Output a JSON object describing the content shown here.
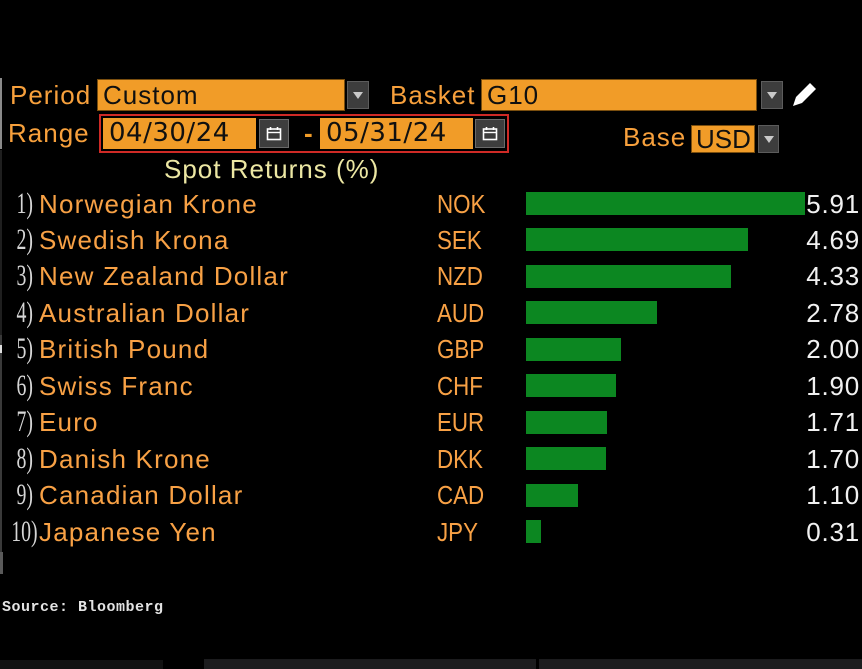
{
  "controls": {
    "period": {
      "label": "Period",
      "value": "Custom"
    },
    "basket": {
      "label": "Basket",
      "value": "G10"
    },
    "range": {
      "label": "Range",
      "start": "04/30/24",
      "separator": "-",
      "end": "05/31/24"
    },
    "base": {
      "label": "Base",
      "value": "USD"
    }
  },
  "chart_data": {
    "type": "bar",
    "orientation": "horizontal",
    "title": "Spot Returns (%)",
    "categories": [
      "Norwegian Krone",
      "Swedish Krona",
      "New Zealand Dollar",
      "Australian Dollar",
      "British Pound",
      "Swiss Franc",
      "Euro",
      "Danish Krone",
      "Canadian Dollar",
      "Japanese Yen"
    ],
    "tickers": [
      "NOK",
      "SEK",
      "NZD",
      "AUD",
      "GBP",
      "CHF",
      "EUR",
      "DKK",
      "CAD",
      "JPY"
    ],
    "values": [
      5.91,
      4.69,
      4.33,
      2.78,
      2.0,
      1.9,
      1.71,
      1.7,
      1.1,
      0.31
    ],
    "value_labels": [
      "5.91",
      "4.69",
      "4.33",
      "2.78",
      "2.00",
      "1.90",
      "1.71",
      "1.70",
      "1.10",
      "0.31"
    ],
    "ranks": [
      "1)",
      "2)",
      "3)",
      "4)",
      "5)",
      "6)",
      "7)",
      "8)",
      "9)",
      "10)"
    ],
    "xlim": [
      0,
      7.11
    ],
    "grid": false,
    "legend": false,
    "bar_color": "#0c8721",
    "label_color": "#f8a145",
    "value_color": "#f1f1f1",
    "title_color": "#ece7a3",
    "rows": [
      {
        "rank": "1)",
        "name": "Norwegian Krone",
        "ticker": "NOK",
        "value": "5.91"
      },
      {
        "rank": "2)",
        "name": "Swedish Krona",
        "ticker": "SEK",
        "value": "4.69"
      },
      {
        "rank": "3)",
        "name": "New Zealand Dollar",
        "ticker": "NZD",
        "value": "4.33"
      },
      {
        "rank": "4)",
        "name": "Australian Dollar",
        "ticker": "AUD",
        "value": "2.78"
      },
      {
        "rank": "5)",
        "name": "British Pound",
        "ticker": "GBP",
        "value": "2.00"
      },
      {
        "rank": "6)",
        "name": "Swiss Franc",
        "ticker": "CHF",
        "value": "1.90"
      },
      {
        "rank": "7)",
        "name": "Euro",
        "ticker": "EUR",
        "value": "1.71"
      },
      {
        "rank": "8)",
        "name": "Danish Krone",
        "ticker": "DKK",
        "value": "1.70"
      },
      {
        "rank": "9)",
        "name": "Canadian Dollar",
        "ticker": "CAD",
        "value": "1.10"
      },
      {
        "rank": "10)",
        "name": "Japanese Yen",
        "ticker": "JPY",
        "value": "0.31"
      }
    ]
  },
  "footer": {
    "source": "Source: Bloomberg"
  },
  "icons": {
    "dropdown_arrow": "chevron-down",
    "calendar": "calendar",
    "pencil": "pencil"
  },
  "colors": {
    "background": "#000000",
    "amber_text": "#f7a03c",
    "amber_fill": "#f19c28",
    "red_border": "#cf2a26",
    "bar_green": "#0c8721"
  }
}
